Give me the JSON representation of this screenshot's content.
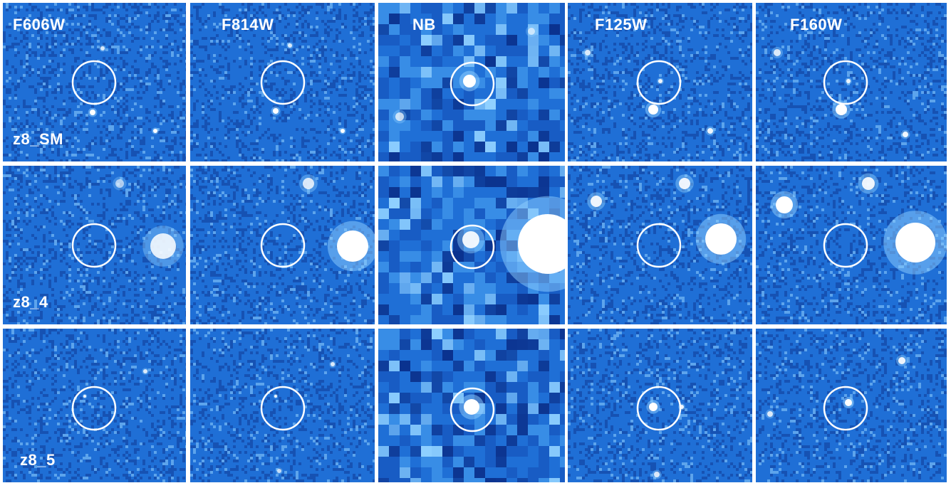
{
  "bands": [
    "F606W",
    "F814W",
    "NB",
    "F125W",
    "F160W"
  ],
  "objects": [
    "z8_SM",
    "z8_4",
    "z8_5"
  ],
  "colors": {
    "background_blue": "#1f6fd6",
    "dark_blue": "#0a2f8a",
    "light_blue": "#8fd0ff",
    "frame": "#ffffff",
    "circle": "#ffffff",
    "label": "#ffffff"
  }
}
